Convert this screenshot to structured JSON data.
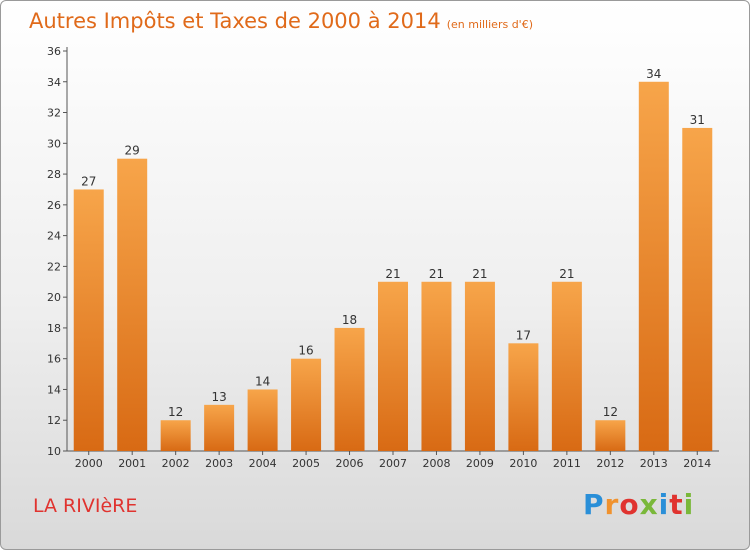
{
  "header": {
    "title": "Autres Impôts et Taxes de 2000 à 2014",
    "subtitle": "(en milliers d'€)"
  },
  "footer": {
    "commune": "LA RIVIèRE",
    "logo": "Proxiti"
  },
  "colors": {
    "accent": "#e06a1a",
    "bar": "#f0922e",
    "commune": "#e0332f"
  },
  "chart_data": {
    "type": "bar",
    "title": "Autres Impôts et Taxes de 2000 à 2014",
    "subtitle": "(en milliers d'€)",
    "categories": [
      "2000",
      "2001",
      "2002",
      "2003",
      "2004",
      "2005",
      "2006",
      "2007",
      "2008",
      "2009",
      "2010",
      "2011",
      "2012",
      "2013",
      "2014"
    ],
    "values": [
      27,
      29,
      12,
      13,
      14,
      16,
      18,
      21,
      21,
      21,
      17,
      21,
      12,
      34,
      31
    ],
    "yticks": [
      10,
      12,
      14,
      16,
      18,
      20,
      22,
      24,
      26,
      28,
      30,
      32,
      34,
      36
    ],
    "ylim": [
      10,
      36
    ],
    "xlabel": "",
    "ylabel": "",
    "grid": false,
    "data_labels": true
  }
}
